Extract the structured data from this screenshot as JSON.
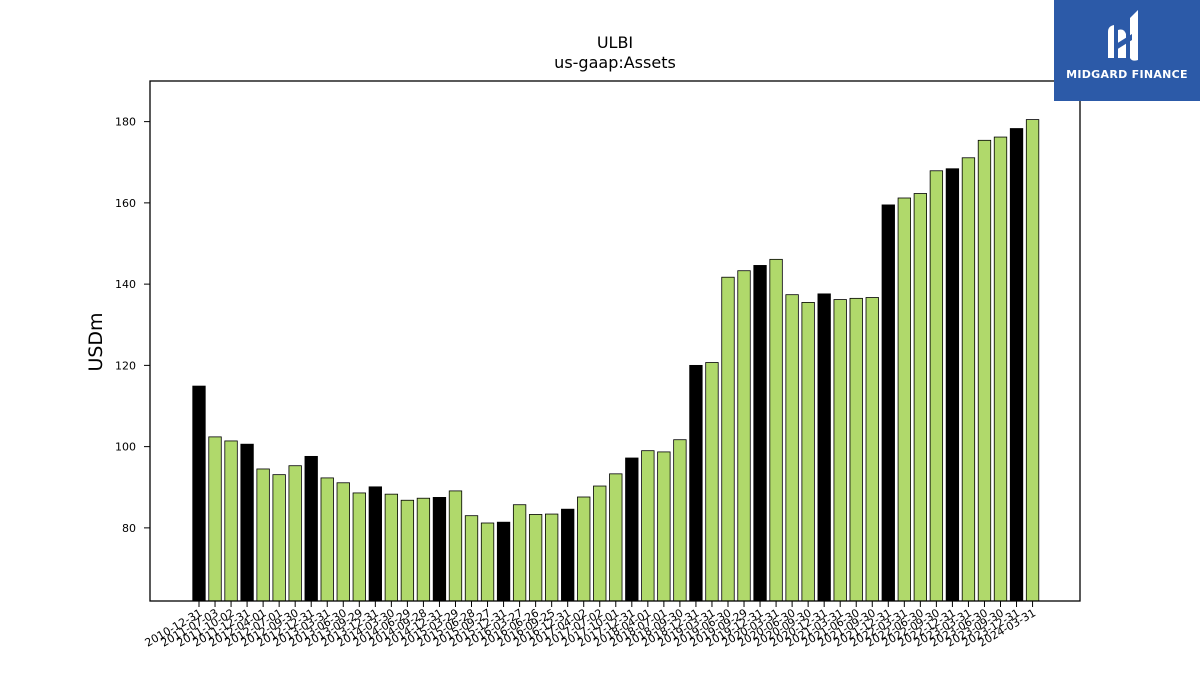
{
  "brand": {
    "name": "MIDGARD FINANCE",
    "background": "#2c5aa8",
    "icon": "midgard-logo-icon"
  },
  "chart_data": {
    "type": "bar",
    "title": "ULBI",
    "subtitle": "us-gaap:Assets",
    "xlabel": "",
    "ylabel": "USDm",
    "ylim": [
      62,
      190
    ],
    "yticks": [
      80,
      100,
      120,
      140,
      160,
      180
    ],
    "grid": false,
    "colors": {
      "annual": "#000000",
      "quarterly": "#b0d96b",
      "edge": "#000000"
    },
    "categories": [
      "2010-12-31",
      "2011-07-03",
      "2011-10-02",
      "2011-12-31",
      "2012-04-01",
      "2012-07-01",
      "2012-09-30",
      "2012-12-31",
      "2013-03-31",
      "2013-06-30",
      "2013-09-29",
      "2013-12-31",
      "2014-03-30",
      "2014-06-29",
      "2014-09-28",
      "2014-12-31",
      "2015-03-29",
      "2015-06-28",
      "2015-09-27",
      "2015-12-31",
      "2016-03-27",
      "2016-06-26",
      "2016-09-25",
      "2016-12-31",
      "2017-04-02",
      "2017-07-02",
      "2017-10-01",
      "2017-12-31",
      "2018-04-01",
      "2018-07-01",
      "2018-09-30",
      "2018-12-31",
      "2019-03-31",
      "2019-06-30",
      "2019-09-29",
      "2019-12-31",
      "2020-03-31",
      "2020-06-30",
      "2020-09-30",
      "2020-12-31",
      "2021-03-31",
      "2021-06-30",
      "2021-09-30",
      "2021-12-31",
      "2022-03-31",
      "2022-06-30",
      "2022-09-30",
      "2022-12-31",
      "2023-03-31",
      "2023-06-30",
      "2023-09-30",
      "2023-12-31",
      "2024-03-31"
    ],
    "values": [
      114.9,
      102.4,
      101.4,
      100.6,
      94.5,
      93.1,
      95.3,
      97.6,
      92.3,
      91.1,
      88.6,
      90.1,
      88.3,
      86.8,
      87.3,
      87.5,
      89.1,
      83.0,
      81.2,
      81.4,
      85.7,
      83.3,
      83.4,
      84.6,
      87.6,
      90.3,
      93.3,
      97.2,
      99.0,
      98.7,
      101.7,
      120.0,
      120.7,
      141.7,
      143.3,
      144.6,
      146.1,
      137.4,
      135.5,
      137.6,
      136.2,
      136.5,
      136.7,
      159.5,
      161.2,
      162.3,
      167.9,
      168.4,
      171.1,
      175.4,
      176.2,
      178.3,
      180.5
    ],
    "annual_flags": [
      1,
      0,
      0,
      1,
      0,
      0,
      0,
      1,
      0,
      0,
      0,
      1,
      0,
      0,
      0,
      1,
      0,
      0,
      0,
      1,
      0,
      0,
      0,
      1,
      0,
      0,
      0,
      1,
      0,
      0,
      0,
      1,
      0,
      0,
      0,
      1,
      0,
      0,
      0,
      1,
      0,
      0,
      0,
      1,
      0,
      0,
      0,
      1,
      0,
      0,
      0,
      1,
      0
    ]
  }
}
